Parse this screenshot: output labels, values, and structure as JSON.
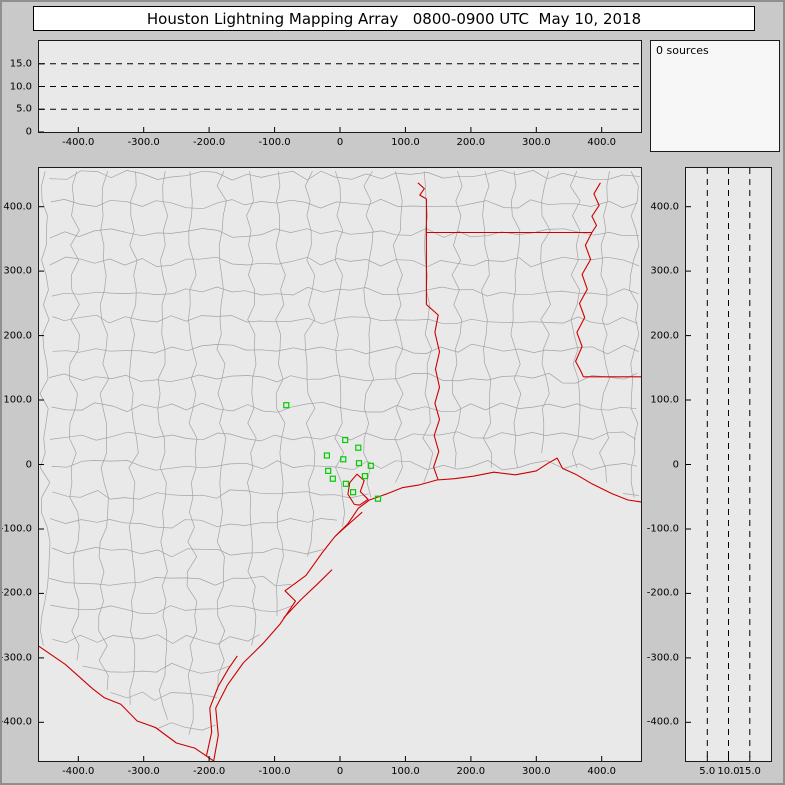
{
  "window": {
    "title": "Houston Lightning Mapping Array   0800-0900 UTC  May 10, 2018"
  },
  "colors": {
    "window_background": "#c9c9c9",
    "panel_background": "#e9e9e9",
    "title_background": "#ffffff",
    "state_border": "#cc0000",
    "county_line": "#a3a3a3",
    "station_marker": "#00cc00",
    "gridline": "#000000"
  },
  "chart_data": [
    {
      "id": "altitude-vs-east-west",
      "type": "scatter",
      "x_ticks": {
        "values": [
          -400,
          -300,
          -200,
          -100,
          0,
          100,
          200,
          300,
          400
        ],
        "labels": [
          "-400.0",
          "-300.0",
          "-200.0",
          "-100.0",
          "0",
          "100.0",
          "200.0",
          "300.0",
          "400.0"
        ]
      },
      "y_ticks": {
        "values": [
          15,
          10,
          5,
          0
        ],
        "labels": [
          "15.0",
          "10.0",
          "5.0",
          "0"
        ]
      },
      "y_gridlines": [
        5,
        10,
        15
      ],
      "xlim": [
        -460,
        460
      ],
      "ylim": [
        0,
        20
      ],
      "points": []
    },
    {
      "id": "source-count",
      "type": "histogram",
      "label": "0 sources",
      "points": []
    },
    {
      "id": "plan-view-map",
      "type": "scatter",
      "x_ticks": {
        "values": [
          -400,
          -300,
          -200,
          -100,
          0,
          100,
          200,
          300,
          400
        ],
        "labels": [
          "-400.0",
          "-300.0",
          "-200.0",
          "-100.0",
          "0",
          "100.0",
          "200.0",
          "300.0",
          "400.0"
        ]
      },
      "y_ticks": {
        "values": [
          400,
          300,
          200,
          100,
          0,
          -100,
          -200,
          -300,
          -400
        ],
        "labels": [
          "400.0",
          "300.0",
          "200.0",
          "100.0",
          "0",
          "-100.0",
          "-200.0",
          "-300.0",
          "-400.0"
        ]
      },
      "xlim": [
        -460,
        460
      ],
      "ylim": [
        -460,
        460
      ],
      "points": [],
      "colors": {
        "county": "#a3a3a3",
        "state": "#cc0000",
        "station": "#00cc00"
      },
      "stations_km": [
        [
          -82,
          92
        ],
        [
          8,
          38
        ],
        [
          28,
          26
        ],
        [
          -20,
          14
        ],
        [
          5,
          8
        ],
        [
          29,
          2
        ],
        [
          47,
          -2
        ],
        [
          38,
          -18
        ],
        [
          -18,
          -10
        ],
        [
          -11,
          -22
        ],
        [
          9,
          -30
        ],
        [
          20,
          -43
        ],
        [
          58,
          -53
        ]
      ],
      "state_borders_km": {
        "coast": [
          [
            -193,
            -460
          ],
          [
            -186,
            -420
          ],
          [
            -190,
            -378
          ],
          [
            -172,
            -342
          ],
          [
            -148,
            -308
          ],
          [
            -118,
            -278
          ],
          [
            -92,
            -248
          ],
          [
            -68,
            -212
          ],
          [
            -84,
            -196
          ],
          [
            -52,
            -172
          ],
          [
            -28,
            -138
          ],
          [
            -8,
            -112
          ],
          [
            12,
            -92
          ],
          [
            28,
            -68
          ],
          [
            45,
            -55
          ],
          [
            70,
            -46
          ],
          [
            95,
            -36
          ],
          [
            120,
            -32
          ],
          [
            148,
            -24
          ],
          [
            175,
            -22
          ],
          [
            205,
            -18
          ],
          [
            235,
            -12
          ],
          [
            268,
            -16
          ],
          [
            300,
            -10
          ],
          [
            318,
            2
          ],
          [
            332,
            10
          ],
          [
            340,
            -6
          ],
          [
            360,
            -15
          ],
          [
            385,
            -30
          ],
          [
            415,
            -45
          ],
          [
            440,
            -55
          ],
          [
            460,
            -58
          ]
        ],
        "rio_grande": [
          [
            -460,
            -282
          ],
          [
            -420,
            -310
          ],
          [
            -378,
            -348
          ],
          [
            -360,
            -362
          ],
          [
            -335,
            -372
          ],
          [
            -310,
            -398
          ],
          [
            -282,
            -408
          ],
          [
            -250,
            -432
          ],
          [
            -222,
            -440
          ],
          [
            -193,
            -460
          ]
        ],
        "padre_island": [
          [
            -204,
            -452
          ],
          [
            -196,
            -415
          ],
          [
            -199,
            -378
          ],
          [
            -186,
            -344
          ],
          [
            -170,
            -316
          ],
          [
            -157,
            -297
          ]
        ],
        "matagorda_island": [
          [
            -86,
            -238
          ],
          [
            -60,
            -210
          ],
          [
            -34,
            -185
          ],
          [
            -12,
            -163
          ]
        ],
        "galveston_island": [
          [
            -6,
            -110
          ],
          [
            16,
            -90
          ],
          [
            34,
            -74
          ]
        ],
        "galveston_bay": [
          [
            22,
            -62
          ],
          [
            12,
            -46
          ],
          [
            15,
            -28
          ],
          [
            26,
            -15
          ],
          [
            37,
            -25
          ],
          [
            31,
            -42
          ],
          [
            43,
            -54
          ],
          [
            30,
            -63
          ],
          [
            22,
            -62
          ]
        ],
        "sabine_river": [
          [
            150,
            -24
          ],
          [
            143,
            -4
          ],
          [
            151,
            20
          ],
          [
            144,
            45
          ],
          [
            152,
            70
          ],
          [
            145,
            95
          ],
          [
            152,
            120
          ],
          [
            146,
            148
          ],
          [
            152,
            175
          ],
          [
            145,
            205
          ],
          [
            150,
            232
          ],
          [
            132,
            248
          ]
        ],
        "texas_arkansas_line": [
          [
            132,
            248
          ],
          [
            132,
            412
          ]
        ],
        "red_river_corner": [
          [
            132,
            412
          ],
          [
            122,
            418
          ],
          [
            129,
            428
          ],
          [
            119,
            437
          ]
        ],
        "arkansas_louisiana_line": [
          [
            132,
            360
          ],
          [
            385,
            360
          ]
        ],
        "mississippi_river": [
          [
            398,
            437
          ],
          [
            388,
            420
          ],
          [
            396,
            402
          ],
          [
            385,
            385
          ],
          [
            392,
            371
          ],
          [
            385,
            360
          ],
          [
            375,
            340
          ],
          [
            383,
            318
          ],
          [
            370,
            295
          ],
          [
            378,
            272
          ],
          [
            366,
            250
          ],
          [
            374,
            228
          ],
          [
            362,
            205
          ],
          [
            370,
            183
          ],
          [
            360,
            160
          ],
          [
            368,
            145
          ],
          [
            372,
            136
          ]
        ],
        "louisiana_mississippi_line": [
          [
            372,
            136
          ],
          [
            460,
            136
          ]
        ]
      }
    },
    {
      "id": "altitude-vs-north-south",
      "type": "scatter",
      "x_ticks": {
        "values": [
          5,
          10,
          15
        ],
        "labels": [
          "5.0",
          "10.0",
          "15.0"
        ]
      },
      "y_ticks": {
        "values": [
          400,
          300,
          200,
          100,
          0,
          -100,
          -200,
          -300,
          -400
        ],
        "labels": [
          "400.0",
          "300.0",
          "200.0",
          "100.0",
          "0",
          "-100.0",
          "-200.0",
          "-300.0",
          "-400.0"
        ]
      },
      "x_gridlines": [
        5,
        10,
        15
      ],
      "xlim": [
        0,
        20
      ],
      "ylim": [
        -460,
        460
      ],
      "points": []
    }
  ]
}
